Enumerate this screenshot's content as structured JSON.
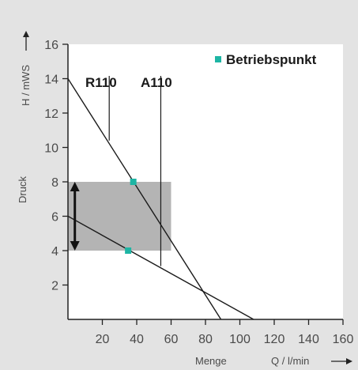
{
  "chart_data": {
    "type": "line",
    "x_axis": {
      "label_left": "Menge",
      "label_right": "Q / l/min",
      "range": [
        0,
        160
      ],
      "ticks": [
        20,
        40,
        60,
        80,
        100,
        120,
        140,
        160
      ]
    },
    "y_axis": {
      "label_outer": "Druck",
      "label_inner": "H / mWS",
      "range": [
        0,
        16
      ],
      "ticks": [
        2,
        4,
        6,
        8,
        10,
        12,
        14,
        16
      ]
    },
    "series": [
      {
        "label": "R110",
        "points": [
          [
            0,
            6.0
          ],
          [
            108,
            0.0
          ]
        ],
        "label_anchor": [
          24,
          10.4
        ]
      },
      {
        "label": "A110",
        "points": [
          [
            0,
            14.0
          ],
          [
            89,
            0.0
          ]
        ],
        "label_anchor": [
          54,
          3.1
        ]
      }
    ],
    "operating_points": [
      {
        "x": 38,
        "y": 8.0
      },
      {
        "x": 35,
        "y": 4.0
      }
    ],
    "highlight_region": {
      "x": [
        0,
        60
      ],
      "y": [
        4,
        8
      ]
    },
    "double_arrow": {
      "x": 4,
      "y": [
        4,
        8
      ]
    },
    "legend": {
      "label": "Betriebspunkt",
      "marker_color": "#1db5a4",
      "position": "top-right"
    },
    "grid": false,
    "colors": {
      "line": "#1a1a1a",
      "marker": "#1db5a4",
      "highlight": "#acacac",
      "background": "#e3e3e3"
    }
  }
}
